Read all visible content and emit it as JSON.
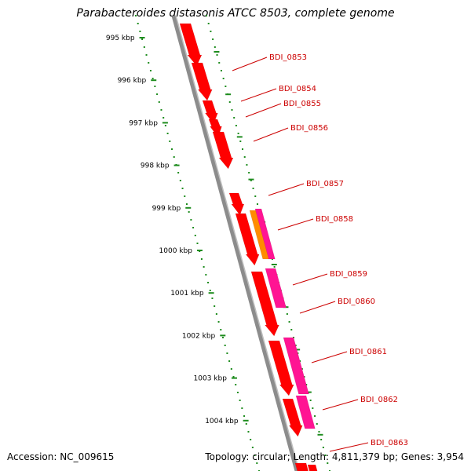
{
  "title": "Parabacteroides distasonis ATCC 8503, complete genome",
  "footer": {
    "accession_label": "Accession:",
    "accession": "NC_009615",
    "topology_label": "Topology:",
    "topology": "circular",
    "length_label": "Length:",
    "length": "4,811,379 bp",
    "genes_label": "Genes:",
    "genes": "3,954"
  },
  "colors": {
    "backbone": "#8c8c8c",
    "tick": "#1e8c1e",
    "forward_gene": "#ff0000",
    "reverse_gene": "#e60000",
    "pink_gene": "#ff1493",
    "orange_gene": "#ff8c00",
    "label": "#cc0000"
  },
  "scale_ticks": [
    {
      "label": "995 kbp",
      "kbp": 995
    },
    {
      "label": "996 kbp",
      "kbp": 996
    },
    {
      "label": "997 kbp",
      "kbp": 997
    },
    {
      "label": "998 kbp",
      "kbp": 998
    },
    {
      "label": "999 kbp",
      "kbp": 999
    },
    {
      "label": "1000 kbp",
      "kbp": 1000
    },
    {
      "label": "1001 kbp",
      "kbp": 1001
    },
    {
      "label": "1002 kbp",
      "kbp": 1002
    },
    {
      "label": "1003 kbp",
      "kbp": 1003
    },
    {
      "label": "1004 kbp",
      "kbp": 1004
    }
  ],
  "genes": [
    {
      "name": "BDI_0853"
    },
    {
      "name": "BDI_0854"
    },
    {
      "name": "BDI_0855"
    },
    {
      "name": "BDI_0856"
    },
    {
      "name": "BDI_0857"
    },
    {
      "name": "BDI_0858"
    },
    {
      "name": "BDI_0859"
    },
    {
      "name": "BDI_0860"
    },
    {
      "name": "BDI_0861"
    },
    {
      "name": "BDI_0862"
    },
    {
      "name": "BDI_0863"
    }
  ]
}
